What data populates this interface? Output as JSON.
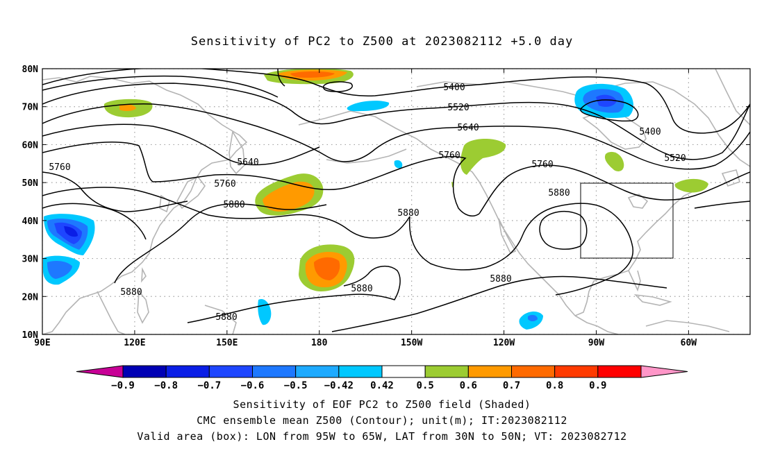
{
  "title": "Sensitivity of PC2 to Z500 at 2023082112 +5.0 day",
  "map": {
    "lon_labels": [
      "90E",
      "120E",
      "150E",
      "180",
      "150W",
      "120W",
      "90W",
      "60W"
    ],
    "lat_labels": [
      "80N",
      "70N",
      "60N",
      "50N",
      "40N",
      "30N",
      "20N",
      "10N"
    ],
    "lon_range": [
      90,
      320
    ],
    "lat_range": [
      10,
      80
    ],
    "gridlines": true,
    "coastline_color": "#b4b4b4",
    "contour_color": "#000000",
    "contour_labels": [
      "5400",
      "5520",
      "5640",
      "5760",
      "5880"
    ],
    "valid_box": {
      "lon": [
        265,
        295
      ],
      "lat": [
        30,
        50
      ]
    }
  },
  "colorbar": {
    "labels": [
      "−0.9",
      "−0.8",
      "−0.7",
      "−0.6",
      "−0.5",
      "−0.42",
      "0.42",
      "0.5",
      "0.6",
      "0.7",
      "0.8",
      "0.9"
    ],
    "colors": [
      "#c80096",
      "#0000b4",
      "#0a1ee6",
      "#1e46ff",
      "#1e78ff",
      "#1eaaff",
      "#00c8ff",
      "#ffffff",
      "#9ccc32",
      "#ff9a00",
      "#ff6a00",
      "#ff3a00",
      "#ff0000",
      "#ff96c8"
    ]
  },
  "footer": {
    "line1": "Sensitivity of EOF PC2 to Z500 field (Shaded)",
    "line2": "CMC ensemble mean Z500 (Contour); unit(m); IT:2023082112",
    "line3": "Valid area (box): LON from 95W to 65W, LAT from 30N to 50N; VT: 2023082712"
  }
}
